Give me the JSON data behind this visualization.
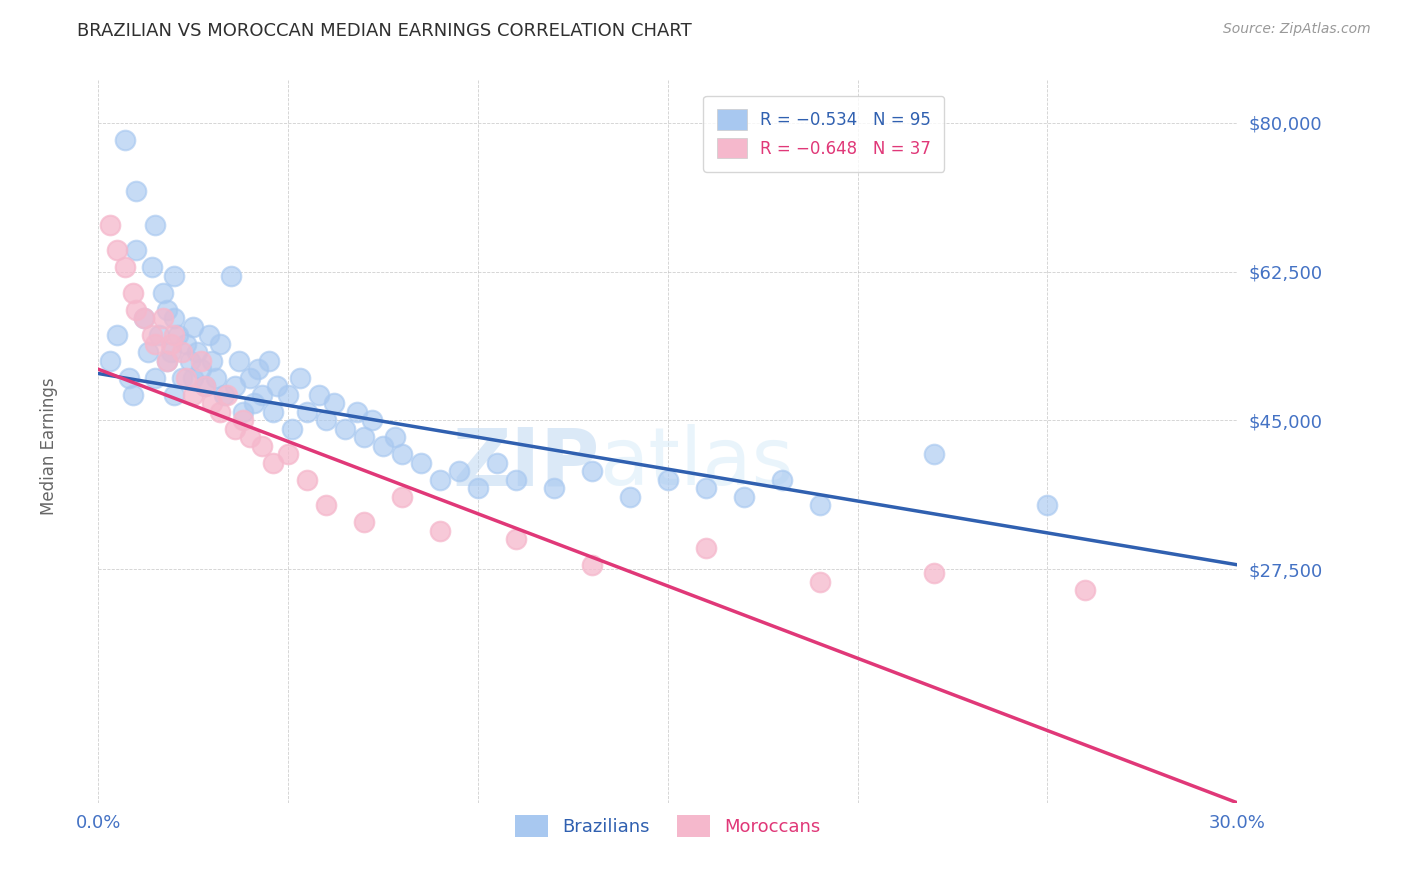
{
  "title": "BRAZILIAN VS MOROCCAN MEDIAN EARNINGS CORRELATION CHART",
  "source": "Source: ZipAtlas.com",
  "ylabel": "Median Earnings",
  "xlabel": "",
  "xlim": [
    0.0,
    0.3
  ],
  "ylim": [
    0,
    85000
  ],
  "yticks": [
    27500,
    45000,
    62500,
    80000
  ],
  "ytick_labels": [
    "$27,500",
    "$45,000",
    "$62,500",
    "$80,000"
  ],
  "xticks": [
    0.0,
    0.05,
    0.1,
    0.15,
    0.2,
    0.25,
    0.3
  ],
  "xtick_labels": [
    "0.0%",
    "",
    "",
    "",
    "",
    "",
    "30.0%"
  ],
  "watermark_zip": "ZIP",
  "watermark_atlas": "atlas",
  "brazil_color": "#a8c8f0",
  "morocco_color": "#f5b8cc",
  "brazil_line_color": "#3060b0",
  "morocco_line_color": "#e03878",
  "background_color": "#ffffff",
  "grid_color": "#bbbbbb",
  "title_color": "#303030",
  "axis_label_color": "#666666",
  "tick_color": "#4472c4",
  "brazil_intercept": 50500,
  "brazil_slope": -75000,
  "morocco_intercept": 51000,
  "morocco_slope": -170000,
  "brazil_points_x": [
    0.003,
    0.005,
    0.007,
    0.008,
    0.009,
    0.01,
    0.01,
    0.012,
    0.013,
    0.014,
    0.015,
    0.015,
    0.016,
    0.017,
    0.018,
    0.018,
    0.019,
    0.02,
    0.02,
    0.02,
    0.021,
    0.022,
    0.023,
    0.024,
    0.025,
    0.025,
    0.026,
    0.027,
    0.028,
    0.029,
    0.03,
    0.031,
    0.032,
    0.033,
    0.035,
    0.036,
    0.037,
    0.038,
    0.04,
    0.041,
    0.042,
    0.043,
    0.045,
    0.046,
    0.047,
    0.05,
    0.051,
    0.053,
    0.055,
    0.058,
    0.06,
    0.062,
    0.065,
    0.068,
    0.07,
    0.072,
    0.075,
    0.078,
    0.08,
    0.085,
    0.09,
    0.095,
    0.1,
    0.105,
    0.11,
    0.12,
    0.13,
    0.14,
    0.15,
    0.16,
    0.17,
    0.18,
    0.19,
    0.22,
    0.25
  ],
  "brazil_points_y": [
    52000,
    55000,
    78000,
    50000,
    48000,
    72000,
    65000,
    57000,
    53000,
    63000,
    68000,
    50000,
    55000,
    60000,
    52000,
    58000,
    53000,
    57000,
    48000,
    62000,
    55000,
    50000,
    54000,
    52000,
    56000,
    50000,
    53000,
    51000,
    49000,
    55000,
    52000,
    50000,
    54000,
    48000,
    62000,
    49000,
    52000,
    46000,
    50000,
    47000,
    51000,
    48000,
    52000,
    46000,
    49000,
    48000,
    44000,
    50000,
    46000,
    48000,
    45000,
    47000,
    44000,
    46000,
    43000,
    45000,
    42000,
    43000,
    41000,
    40000,
    38000,
    39000,
    37000,
    40000,
    38000,
    37000,
    39000,
    36000,
    38000,
    37000,
    36000,
    38000,
    35000,
    41000,
    35000
  ],
  "morocco_points_x": [
    0.003,
    0.005,
    0.007,
    0.009,
    0.01,
    0.012,
    0.014,
    0.015,
    0.017,
    0.018,
    0.019,
    0.02,
    0.022,
    0.023,
    0.025,
    0.027,
    0.028,
    0.03,
    0.032,
    0.034,
    0.036,
    0.038,
    0.04,
    0.043,
    0.046,
    0.05,
    0.055,
    0.06,
    0.07,
    0.08,
    0.09,
    0.11,
    0.13,
    0.16,
    0.19,
    0.22,
    0.26
  ],
  "morocco_points_y": [
    68000,
    65000,
    63000,
    60000,
    58000,
    57000,
    55000,
    54000,
    57000,
    52000,
    54000,
    55000,
    53000,
    50000,
    48000,
    52000,
    49000,
    47000,
    46000,
    48000,
    44000,
    45000,
    43000,
    42000,
    40000,
    41000,
    38000,
    35000,
    33000,
    36000,
    32000,
    31000,
    28000,
    30000,
    26000,
    27000,
    25000
  ]
}
